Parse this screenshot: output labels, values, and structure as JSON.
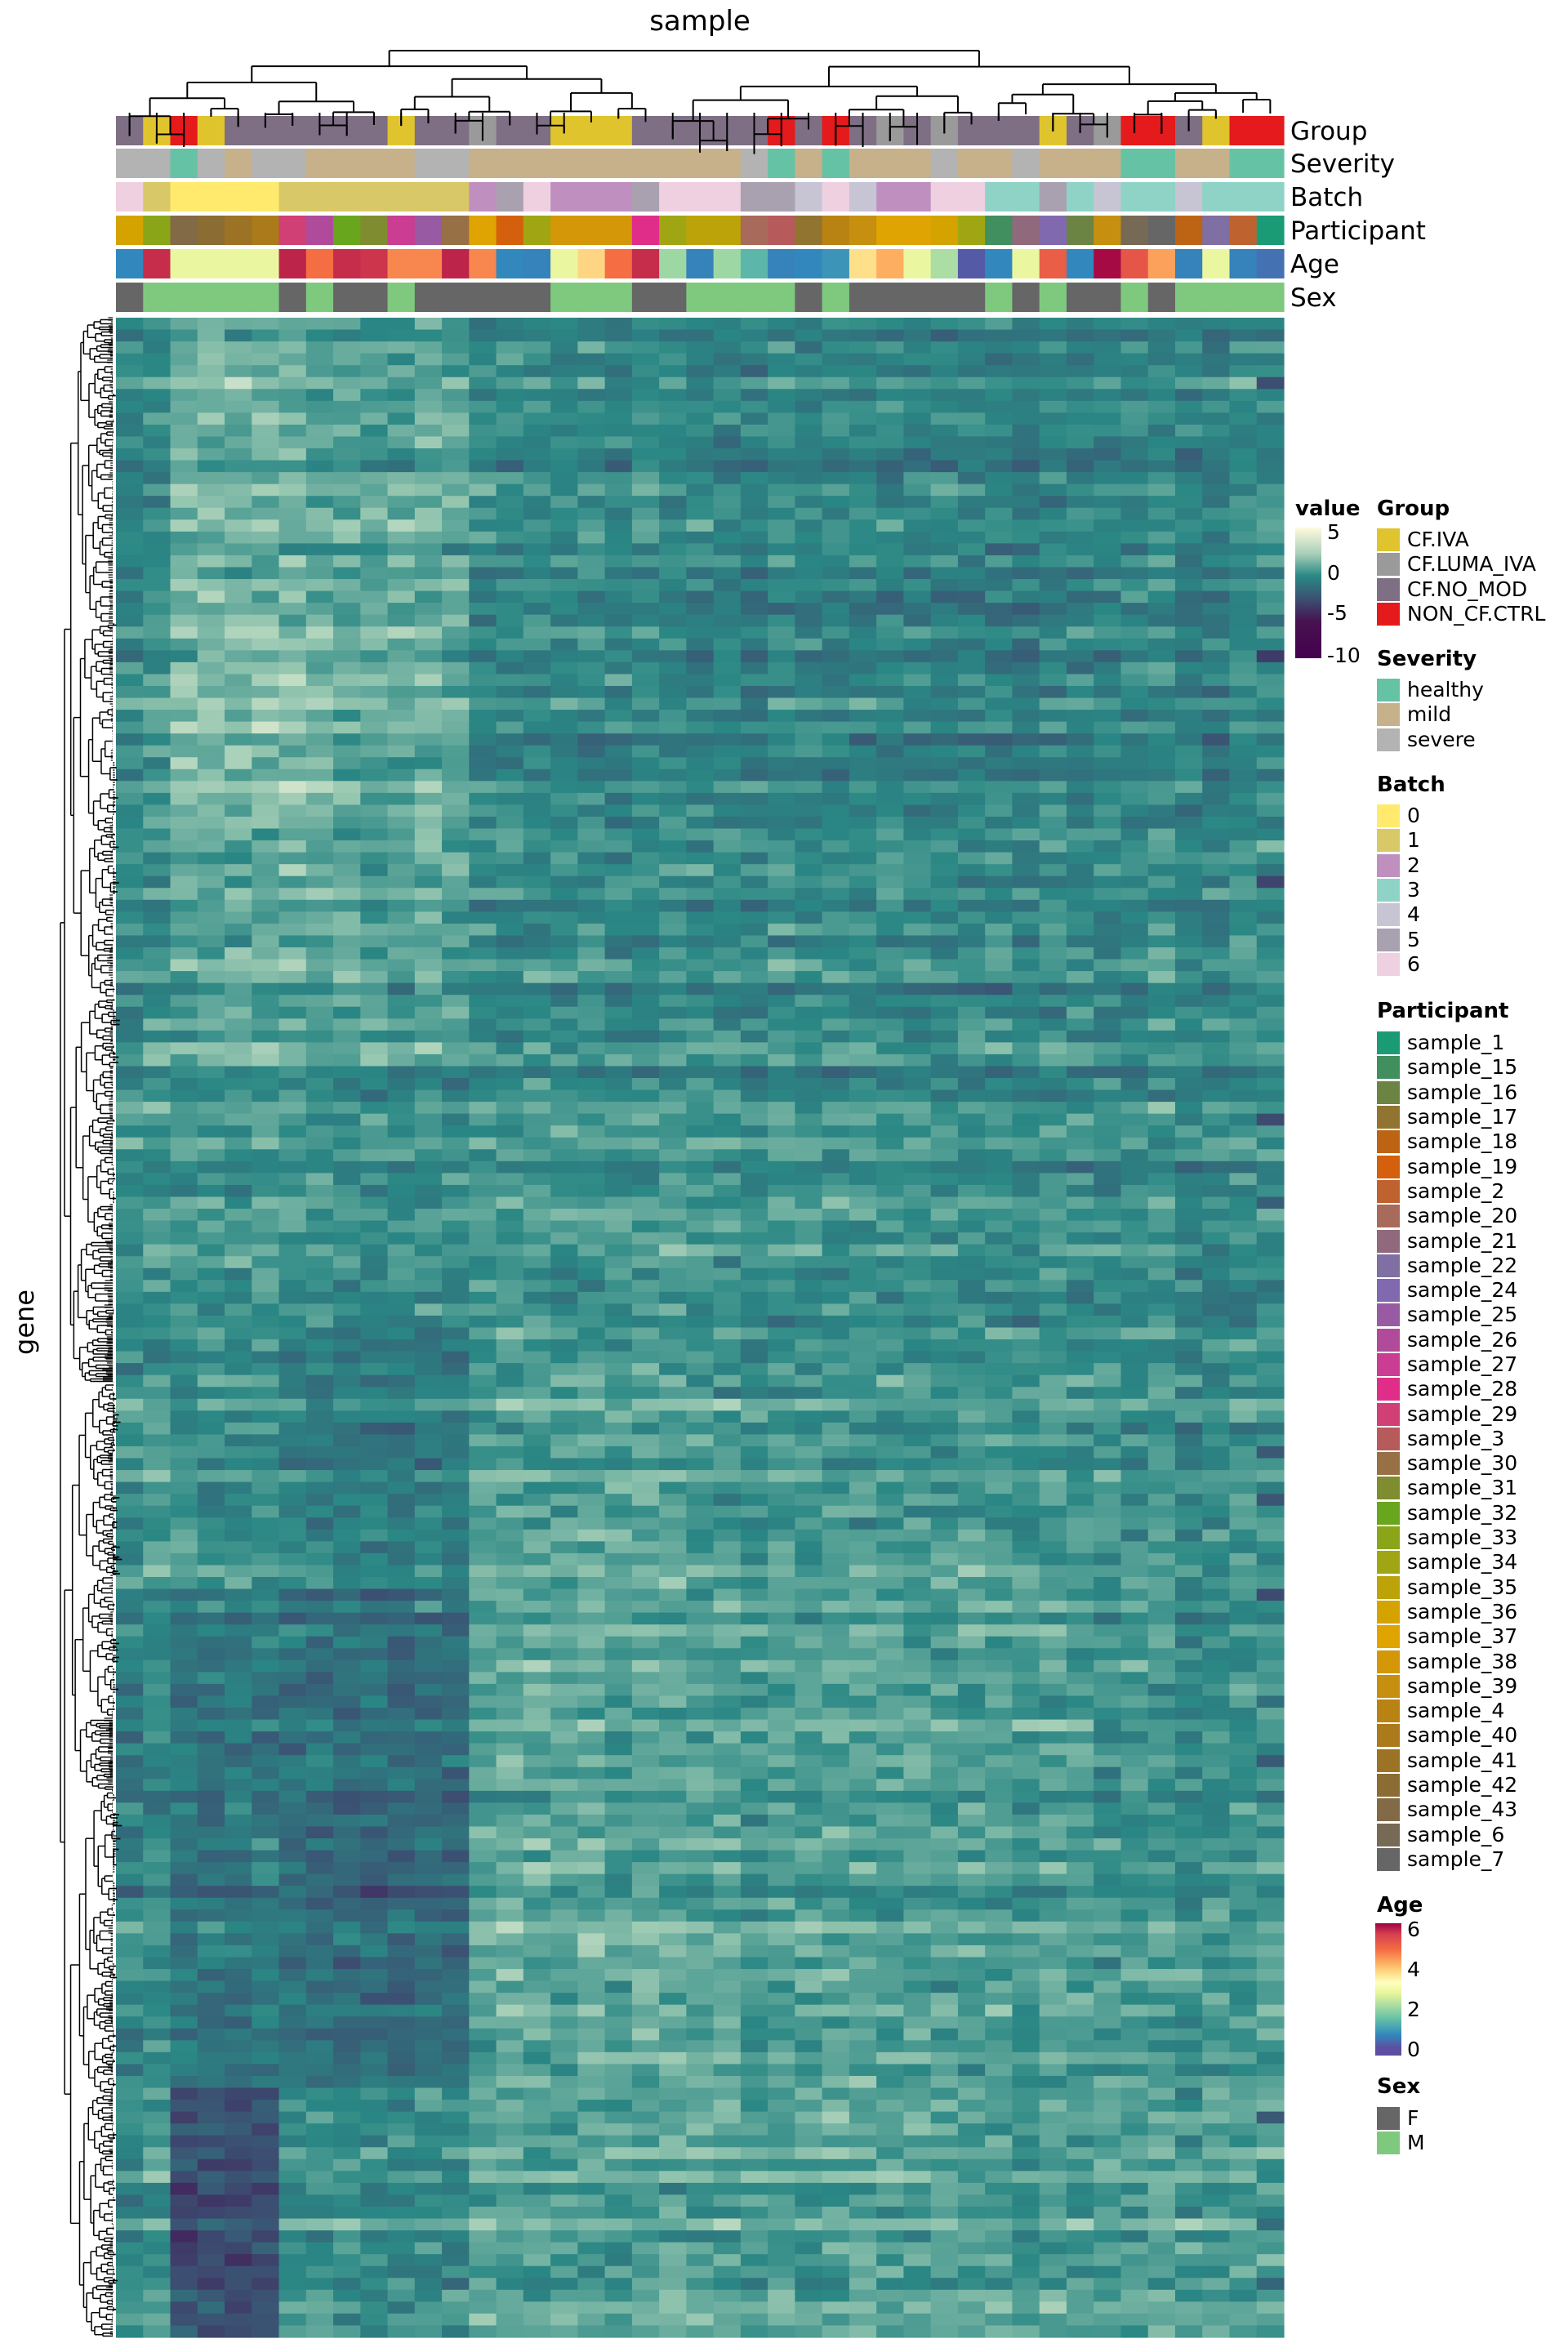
{
  "chart_data": {
    "type": "heatmap",
    "title": "sample",
    "xlabel": "sample",
    "ylabel": "gene",
    "value_legend": {
      "title": "value",
      "ticks": [
        "5",
        "0",
        "-5",
        "-10"
      ],
      "range": [
        -10,
        5
      ]
    },
    "n_columns": 43,
    "row_blocks_note": "mean value per row block (top to bottom) for each column group",
    "column_groups": [
      [
        0,
        1
      ],
      [
        2,
        5
      ],
      [
        6,
        12
      ],
      [
        13,
        21
      ],
      [
        22,
        35
      ],
      [
        36,
        42
      ]
    ],
    "block_means": [
      [
        0.0,
        1.5,
        1.2,
        0.0,
        -0.3,
        -0.2
      ],
      [
        0.5,
        2.0,
        1.5,
        -0.3,
        -0.5,
        -0.3
      ],
      [
        0.2,
        1.0,
        1.0,
        0.0,
        0.0,
        0.0
      ],
      [
        0.5,
        0.5,
        0.3,
        0.5,
        0.3,
        0.0
      ],
      [
        0.5,
        0.2,
        -0.5,
        0.8,
        0.5,
        0.3
      ],
      [
        0.0,
        -0.8,
        -1.2,
        1.2,
        1.0,
        0.5
      ],
      [
        0.0,
        -1.0,
        -1.5,
        1.0,
        0.8,
        0.5
      ],
      [
        0.5,
        -3.0,
        0.3,
        1.0,
        1.0,
        1.0
      ]
    ],
    "annotations": {
      "labels": [
        "Group",
        "Severity",
        "Batch",
        "Participant",
        "Age",
        "Sex"
      ],
      "Group": [
        "CF.NO_MOD",
        "CF.IVA",
        "NON_CF.CTRL",
        "CF.IVA",
        "CF.NO_MOD",
        "CF.NO_MOD",
        "CF.NO_MOD",
        "CF.NO_MOD",
        "CF.NO_MOD",
        "CF.NO_MOD",
        "CF.IVA",
        "CF.NO_MOD",
        "CF.NO_MOD",
        "CF.LUMA_IVA",
        "CF.NO_MOD",
        "CF.NO_MOD",
        "CF.IVA",
        "CF.IVA",
        "CF.IVA",
        "CF.NO_MOD",
        "CF.NO_MOD",
        "CF.NO_MOD",
        "CF.NO_MOD",
        "CF.NO_MOD",
        "NON_CF.CTRL",
        "CF.NO_MOD",
        "NON_CF.CTRL",
        "CF.NO_MOD",
        "CF.LUMA_IVA",
        "CF.NO_MOD",
        "CF.LUMA_IVA",
        "CF.NO_MOD",
        "CF.NO_MOD",
        "CF.NO_MOD",
        "CF.IVA",
        "CF.NO_MOD",
        "CF.LUMA_IVA",
        "NON_CF.CTRL",
        "NON_CF.CTRL",
        "CF.NO_MOD",
        "CF.IVA",
        "NON_CF.CTRL",
        "NON_CF.CTRL"
      ],
      "Severity": [
        "severe",
        "severe",
        "healthy",
        "severe",
        "mild",
        "severe",
        "severe",
        "mild",
        "mild",
        "mild",
        "mild",
        "severe",
        "severe",
        "mild",
        "mild",
        "mild",
        "mild",
        "mild",
        "mild",
        "mild",
        "mild",
        "mild",
        "mild",
        "severe",
        "healthy",
        "mild",
        "healthy",
        "mild",
        "mild",
        "mild",
        "severe",
        "mild",
        "mild",
        "severe",
        "mild",
        "mild",
        "mild",
        "healthy",
        "healthy",
        "mild",
        "mild",
        "healthy",
        "healthy"
      ],
      "Batch": [
        "6",
        "1",
        "0",
        "0",
        "0",
        "0",
        "1",
        "1",
        "1",
        "1",
        "1",
        "1",
        "1",
        "2",
        "5",
        "6",
        "2",
        "2",
        "2",
        "5",
        "6",
        "6",
        "6",
        "5",
        "5",
        "4",
        "6",
        "4",
        "2",
        "2",
        "6",
        "6",
        "3",
        "3",
        "5",
        "3",
        "4",
        "3",
        "3",
        "4",
        "3",
        "3",
        "3"
      ],
      "Participant": [
        "sample_36",
        "sample_33",
        "sample_43",
        "sample_42",
        "sample_41",
        "sample_40",
        "sample_29",
        "sample_26",
        "sample_32",
        "sample_31",
        "sample_27",
        "sample_25",
        "sample_30",
        "sample_37",
        "sample_19",
        "sample_34",
        "sample_38",
        "sample_38",
        "sample_38",
        "sample_28",
        "sample_34",
        "sample_35",
        "sample_35",
        "sample_20",
        "sample_3",
        "sample_17",
        "sample_4",
        "sample_39",
        "sample_37",
        "sample_37",
        "sample_36",
        "sample_34",
        "sample_15",
        "sample_21",
        "sample_24",
        "sample_16",
        "sample_39",
        "sample_6",
        "sample_7",
        "sample_18",
        "sample_22",
        "sample_2",
        "sample_1"
      ],
      "Age": [
        1.0,
        5.8,
        3.1,
        3.1,
        3.1,
        3.1,
        5.9,
        5.0,
        5.8,
        5.7,
        4.8,
        4.8,
        5.9,
        4.8,
        1.0,
        0.9,
        3.1,
        4.1,
        5.0,
        5.8,
        2.4,
        0.9,
        2.4,
        1.8,
        0.9,
        1.0,
        1.2,
        4.0,
        4.5,
        3.1,
        2.5,
        0.2,
        1.0,
        3.1,
        5.2,
        1.0,
        6.2,
        5.3,
        4.6,
        0.9,
        3.1,
        0.9,
        0.6
      ],
      "Sex": [
        "F",
        "M",
        "M",
        "M",
        "M",
        "M",
        "F",
        "M",
        "F",
        "F",
        "M",
        "F",
        "F",
        "F",
        "F",
        "F",
        "M",
        "M",
        "M",
        "F",
        "F",
        "M",
        "M",
        "M",
        "M",
        "F",
        "M",
        "F",
        "F",
        "F",
        "F",
        "F",
        "M",
        "F",
        "M",
        "F",
        "F",
        "M",
        "F",
        "M",
        "M",
        "M",
        "M"
      ]
    }
  },
  "legend": {
    "group": {
      "title": "Group",
      "items": [
        {
          "label": "CF.IVA",
          "color": "#e0c42e"
        },
        {
          "label": "CF.LUMA_IVA",
          "color": "#9a9a9a"
        },
        {
          "label": "CF.NO_MOD",
          "color": "#7e6f85"
        },
        {
          "label": "NON_CF.CTRL",
          "color": "#e41a1c"
        }
      ]
    },
    "severity": {
      "title": "Severity",
      "items": [
        {
          "label": "healthy",
          "color": "#66c2a5"
        },
        {
          "label": "mild",
          "color": "#c6b18b"
        },
        {
          "label": "severe",
          "color": "#b3b3b3"
        }
      ]
    },
    "batch": {
      "title": "Batch",
      "items": [
        {
          "label": "0",
          "color": "#ffea6e"
        },
        {
          "label": "1",
          "color": "#d9c867"
        },
        {
          "label": "2",
          "color": "#bf90bf"
        },
        {
          "label": "3",
          "color": "#8fd3c7"
        },
        {
          "label": "4",
          "color": "#c7c5d3"
        },
        {
          "label": "5",
          "color": "#a9a0b0"
        },
        {
          "label": "6",
          "color": "#efd0e1"
        }
      ]
    },
    "participant": {
      "title": "Participant",
      "items": [
        {
          "label": "sample_1",
          "color": "#1b9b75"
        },
        {
          "label": "sample_15",
          "color": "#418e5f"
        },
        {
          "label": "sample_16",
          "color": "#6b8444"
        },
        {
          "label": "sample_17",
          "color": "#917430"
        },
        {
          "label": "sample_18",
          "color": "#bc6413"
        },
        {
          "label": "sample_19",
          "color": "#d4600e"
        },
        {
          "label": "sample_2",
          "color": "#be6230"
        },
        {
          "label": "sample_20",
          "color": "#a86a5a"
        },
        {
          "label": "sample_21",
          "color": "#91697d"
        },
        {
          "label": "sample_22",
          "color": "#7f6fa2"
        },
        {
          "label": "sample_24",
          "color": "#8169b0"
        },
        {
          "label": "sample_25",
          "color": "#985aa2"
        },
        {
          "label": "sample_26",
          "color": "#b04b9b"
        },
        {
          "label": "sample_27",
          "color": "#ca3d92"
        },
        {
          "label": "sample_28",
          "color": "#e12d8a"
        },
        {
          "label": "sample_29",
          "color": "#d04074"
        },
        {
          "label": "sample_3",
          "color": "#b65a5c"
        },
        {
          "label": "sample_30",
          "color": "#987045"
        },
        {
          "label": "sample_31",
          "color": "#7f8c30"
        },
        {
          "label": "sample_32",
          "color": "#68a61e"
        },
        {
          "label": "sample_33",
          "color": "#8aa618"
        },
        {
          "label": "sample_34",
          "color": "#a0a613"
        },
        {
          "label": "sample_35",
          "color": "#bca30a"
        },
        {
          "label": "sample_36",
          "color": "#d4a300"
        },
        {
          "label": "sample_37",
          "color": "#dfa402"
        },
        {
          "label": "sample_38",
          "color": "#d39708"
        },
        {
          "label": "sample_39",
          "color": "#c68f10"
        },
        {
          "label": "sample_4",
          "color": "#b98313"
        },
        {
          "label": "sample_40",
          "color": "#aa7a1b"
        },
        {
          "label": "sample_41",
          "color": "#9c7224"
        },
        {
          "label": "sample_42",
          "color": "#8b6c33"
        },
        {
          "label": "sample_43",
          "color": "#836a46"
        },
        {
          "label": "sample_6",
          "color": "#766a56"
        },
        {
          "label": "sample_7",
          "color": "#666666"
        }
      ]
    },
    "age": {
      "title": "Age",
      "ticks": [
        "6",
        "4",
        "2",
        "0"
      ],
      "range": [
        0,
        6
      ]
    },
    "sex": {
      "title": "Sex",
      "items": [
        {
          "label": "F",
          "color": "#666666"
        },
        {
          "label": "M",
          "color": "#7fc97f"
        }
      ]
    }
  }
}
